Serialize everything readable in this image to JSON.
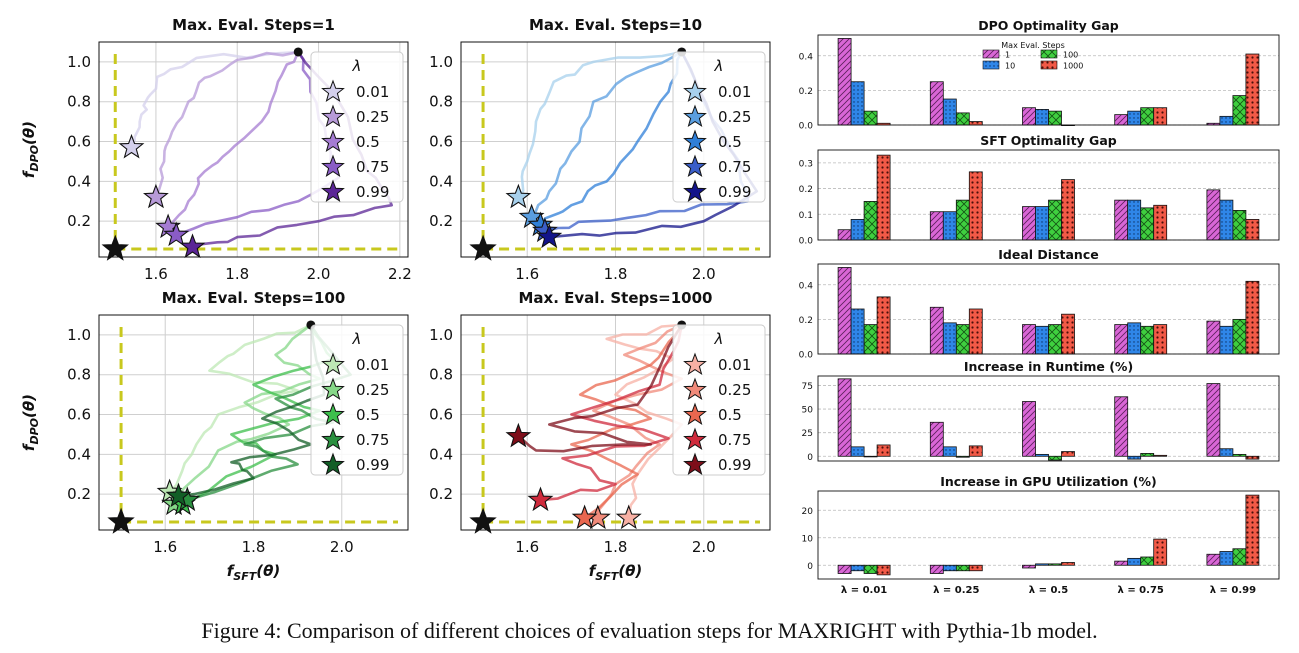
{
  "caption": "Figure 4: Comparison of different choices of evaluation steps for MAXRIGHT with Pythia-1b model.",
  "colors": {
    "target_line": "#c8c81e",
    "grid": "#cfcfcf",
    "bar_1": "#d966d6",
    "bar_10": "#2f86e8",
    "bar_100": "#3fcf3f",
    "bar_1000": "#f25a47"
  },
  "chart_data": [
    {
      "type": "scatter",
      "panel": "top-left",
      "title": "Max. Eval. Steps=1",
      "xlabel": "",
      "ylabel": "f_DPO(θ)",
      "xlim": [
        1.46,
        2.22
      ],
      "ylim": [
        0.02,
        1.1
      ],
      "xticks": [
        "1.6",
        "1.8",
        "2.0",
        "2.2"
      ],
      "yticks": [
        "0.2",
        "0.4",
        "0.6",
        "0.8",
        "1.0"
      ],
      "grid": true,
      "legend_title": "λ",
      "legend_placement": "upper-right",
      "legend": [
        "0.01",
        "0.25",
        "0.5",
        "0.75",
        "0.99"
      ],
      "series_colors": [
        "#d4d0ec",
        "#b79ad8",
        "#a57cd2",
        "#8a5cc6",
        "#5b2596"
      ],
      "target_point": {
        "x": 1.5,
        "y": 0.06
      },
      "start_point": {
        "x": 1.95,
        "y": 1.05
      },
      "star_points": [
        {
          "lambda": "0.01",
          "x": 1.54,
          "y": 0.57
        },
        {
          "lambda": "0.25",
          "x": 1.6,
          "y": 0.32
        },
        {
          "lambda": "0.5",
          "x": 1.63,
          "y": 0.17
        },
        {
          "lambda": "0.75",
          "x": 1.65,
          "y": 0.13
        },
        {
          "lambda": "0.99",
          "x": 1.69,
          "y": 0.07
        }
      ],
      "paths": [
        [
          [
            1.95,
            1.05
          ],
          [
            1.7,
            1.02
          ],
          [
            1.62,
            0.94
          ],
          [
            1.58,
            0.82
          ],
          [
            1.56,
            0.7
          ],
          [
            1.54,
            0.57
          ]
        ],
        [
          [
            1.95,
            1.05
          ],
          [
            1.8,
            1.01
          ],
          [
            1.72,
            0.92
          ],
          [
            1.68,
            0.8
          ],
          [
            1.64,
            0.65
          ],
          [
            1.62,
            0.5
          ],
          [
            1.6,
            0.32
          ]
        ],
        [
          [
            1.95,
            1.05
          ],
          [
            1.9,
            0.9
          ],
          [
            1.86,
            0.7
          ],
          [
            1.78,
            0.55
          ],
          [
            1.72,
            0.45
          ],
          [
            1.68,
            0.3
          ],
          [
            1.63,
            0.17
          ]
        ],
        [
          [
            1.95,
            1.05
          ],
          [
            1.98,
            0.85
          ],
          [
            2.02,
            0.6
          ],
          [
            2.05,
            0.42
          ],
          [
            1.95,
            0.3
          ],
          [
            1.8,
            0.22
          ],
          [
            1.65,
            0.13
          ]
        ],
        [
          [
            1.95,
            1.05
          ],
          [
            2.05,
            0.8
          ],
          [
            2.12,
            0.45
          ],
          [
            2.18,
            0.28
          ],
          [
            2.0,
            0.2
          ],
          [
            1.8,
            0.12
          ],
          [
            1.69,
            0.07
          ]
        ]
      ]
    },
    {
      "type": "scatter",
      "panel": "top-middle",
      "title": "Max. Eval. Steps=10",
      "xlabel": "",
      "ylabel": "",
      "xlim": [
        1.45,
        2.15
      ],
      "ylim": [
        0.02,
        1.1
      ],
      "xticks": [
        "1.6",
        "1.8",
        "2.0"
      ],
      "yticks": [
        "0.2",
        "0.4",
        "0.6",
        "0.8",
        "1.0"
      ],
      "grid": true,
      "legend_title": "λ",
      "legend_placement": "upper-right",
      "legend": [
        "0.01",
        "0.25",
        "0.5",
        "0.75",
        "0.99"
      ],
      "series_colors": [
        "#a7d0ec",
        "#5a9ee0",
        "#2f7fd8",
        "#3a5ec8",
        "#13148a"
      ],
      "target_point": {
        "x": 1.5,
        "y": 0.06
      },
      "start_point": {
        "x": 1.95,
        "y": 1.05
      },
      "star_points": [
        {
          "lambda": "0.01",
          "x": 1.58,
          "y": 0.32
        },
        {
          "lambda": "0.25",
          "x": 1.61,
          "y": 0.22
        },
        {
          "lambda": "0.5",
          "x": 1.63,
          "y": 0.18
        },
        {
          "lambda": "0.75",
          "x": 1.64,
          "y": 0.15
        },
        {
          "lambda": "0.99",
          "x": 1.65,
          "y": 0.12
        }
      ],
      "paths": [
        [
          [
            1.95,
            1.05
          ],
          [
            1.75,
            1.0
          ],
          [
            1.66,
            0.9
          ],
          [
            1.62,
            0.7
          ],
          [
            1.6,
            0.5
          ],
          [
            1.58,
            0.32
          ]
        ],
        [
          [
            1.95,
            1.05
          ],
          [
            1.85,
            0.95
          ],
          [
            1.75,
            0.8
          ],
          [
            1.7,
            0.55
          ],
          [
            1.65,
            0.35
          ],
          [
            1.61,
            0.22
          ]
        ],
        [
          [
            1.95,
            1.05
          ],
          [
            1.92,
            0.85
          ],
          [
            1.85,
            0.6
          ],
          [
            1.78,
            0.4
          ],
          [
            1.7,
            0.28
          ],
          [
            1.63,
            0.18
          ]
        ],
        [
          [
            1.95,
            1.05
          ],
          [
            2.0,
            0.8
          ],
          [
            2.08,
            0.5
          ],
          [
            2.1,
            0.3
          ],
          [
            1.9,
            0.25
          ],
          [
            1.75,
            0.2
          ],
          [
            1.64,
            0.15
          ]
        ],
        [
          [
            1.95,
            1.05
          ],
          [
            2.02,
            0.7
          ],
          [
            2.12,
            0.35
          ],
          [
            2.0,
            0.2
          ],
          [
            1.8,
            0.14
          ],
          [
            1.65,
            0.12
          ]
        ]
      ]
    },
    {
      "type": "scatter",
      "panel": "bottom-left",
      "title": "Max. Eval. Steps=100",
      "xlabel": "f_SFT(θ)",
      "ylabel": "f_DPO(θ)",
      "xlim": [
        1.45,
        2.15
      ],
      "ylim": [
        0.02,
        1.1
      ],
      "xticks": [
        "1.6",
        "1.8",
        "2.0"
      ],
      "yticks": [
        "0.2",
        "0.4",
        "0.6",
        "0.8",
        "1.0"
      ],
      "grid": true,
      "legend_title": "λ",
      "legend_placement": "upper-right",
      "legend": [
        "0.01",
        "0.25",
        "0.5",
        "0.75",
        "0.99"
      ],
      "series_colors": [
        "#bde8b4",
        "#86d788",
        "#3dbf4c",
        "#2a8f3f",
        "#125e26"
      ],
      "target_point": {
        "x": 1.5,
        "y": 0.06
      },
      "start_point": {
        "x": 1.93,
        "y": 1.05
      },
      "star_points": [
        {
          "lambda": "0.01",
          "x": 1.61,
          "y": 0.21
        },
        {
          "lambda": "0.25",
          "x": 1.62,
          "y": 0.15
        },
        {
          "lambda": "0.5",
          "x": 1.64,
          "y": 0.15
        },
        {
          "lambda": "0.75",
          "x": 1.65,
          "y": 0.17
        },
        {
          "lambda": "0.99",
          "x": 1.63,
          "y": 0.19
        }
      ],
      "paths": [
        [
          [
            1.93,
            1.05
          ],
          [
            1.78,
            0.95
          ],
          [
            1.7,
            0.82
          ],
          [
            1.9,
            0.72
          ],
          [
            1.72,
            0.6
          ],
          [
            1.66,
            0.4
          ],
          [
            1.61,
            0.21
          ]
        ],
        [
          [
            1.93,
            1.05
          ],
          [
            1.85,
            0.9
          ],
          [
            1.95,
            0.78
          ],
          [
            1.78,
            0.66
          ],
          [
            1.88,
            0.55
          ],
          [
            1.72,
            0.42
          ],
          [
            1.62,
            0.15
          ]
        ],
        [
          [
            1.93,
            1.05
          ],
          [
            1.98,
            0.88
          ],
          [
            1.8,
            0.75
          ],
          [
            1.95,
            0.62
          ],
          [
            1.75,
            0.5
          ],
          [
            1.85,
            0.4
          ],
          [
            1.64,
            0.15
          ]
        ],
        [
          [
            1.93,
            1.05
          ],
          [
            2.02,
            0.8
          ],
          [
            1.85,
            0.68
          ],
          [
            1.98,
            0.56
          ],
          [
            1.78,
            0.45
          ],
          [
            1.9,
            0.35
          ],
          [
            1.65,
            0.17
          ]
        ],
        [
          [
            1.93,
            1.05
          ],
          [
            1.96,
            0.7
          ],
          [
            1.82,
            0.58
          ],
          [
            1.93,
            0.45
          ],
          [
            1.75,
            0.36
          ],
          [
            1.8,
            0.28
          ],
          [
            1.63,
            0.19
          ]
        ]
      ]
    },
    {
      "type": "scatter",
      "panel": "bottom-middle",
      "title": "Max. Eval. Steps=1000",
      "xlabel": "f_SFT(θ)",
      "ylabel": "",
      "xlim": [
        1.45,
        2.15
      ],
      "ylim": [
        0.02,
        1.1
      ],
      "xticks": [
        "1.6",
        "1.8",
        "2.0"
      ],
      "yticks": [
        "0.2",
        "0.4",
        "0.6",
        "0.8",
        "1.0"
      ],
      "grid": true,
      "legend_title": "λ",
      "legend_placement": "upper-right",
      "legend": [
        "0.01",
        "0.25",
        "0.5",
        "0.75",
        "0.99"
      ],
      "series_colors": [
        "#f7b0a4",
        "#f08a7a",
        "#e9674f",
        "#cf2a3c",
        "#7e0e1a"
      ],
      "target_point": {
        "x": 1.5,
        "y": 0.06
      },
      "start_point": {
        "x": 1.95,
        "y": 1.05
      },
      "star_points": [
        {
          "lambda": "0.01",
          "x": 1.83,
          "y": 0.08
        },
        {
          "lambda": "0.25",
          "x": 1.76,
          "y": 0.08
        },
        {
          "lambda": "0.5",
          "x": 1.73,
          "y": 0.08
        },
        {
          "lambda": "0.75",
          "x": 1.63,
          "y": 0.17
        },
        {
          "lambda": "0.99",
          "x": 1.58,
          "y": 0.49
        }
      ],
      "paths": [
        [
          [
            1.95,
            1.05
          ],
          [
            1.78,
            0.98
          ],
          [
            1.93,
            0.88
          ],
          [
            1.8,
            0.7
          ],
          [
            1.95,
            0.55
          ],
          [
            1.85,
            0.3
          ],
          [
            1.83,
            0.08
          ]
        ],
        [
          [
            1.95,
            1.05
          ],
          [
            1.82,
            0.9
          ],
          [
            1.95,
            0.78
          ],
          [
            1.75,
            0.62
          ],
          [
            1.9,
            0.45
          ],
          [
            1.8,
            0.25
          ],
          [
            1.76,
            0.08
          ]
        ],
        [
          [
            1.95,
            1.05
          ],
          [
            1.88,
            0.85
          ],
          [
            1.72,
            0.7
          ],
          [
            1.88,
            0.58
          ],
          [
            1.7,
            0.45
          ],
          [
            1.85,
            0.3
          ],
          [
            1.73,
            0.08
          ]
        ],
        [
          [
            1.95,
            1.05
          ],
          [
            1.9,
            0.75
          ],
          [
            1.7,
            0.6
          ],
          [
            1.92,
            0.48
          ],
          [
            1.68,
            0.38
          ],
          [
            1.8,
            0.25
          ],
          [
            1.63,
            0.17
          ]
        ],
        [
          [
            1.95,
            1.05
          ],
          [
            1.85,
            0.65
          ],
          [
            1.65,
            0.55
          ],
          [
            1.88,
            0.45
          ],
          [
            1.62,
            0.42
          ],
          [
            1.58,
            0.49
          ]
        ]
      ]
    },
    {
      "type": "bar",
      "panel": "right-1",
      "title": "DPO Optimality Gap",
      "legend_title": "Max Eval. Steps",
      "legend_placement": "top-right",
      "legend": [
        "1",
        "10",
        "100",
        "1000"
      ],
      "categories": [
        "λ = 0.01",
        "λ = 0.25",
        "λ = 0.5",
        "λ = 0.75",
        "λ = 0.99"
      ],
      "ylim": [
        0,
        0.52
      ],
      "yticks": [
        "0.0",
        "0.2",
        "0.4"
      ],
      "ytick_values": [
        0,
        0.2,
        0.4
      ],
      "series": [
        {
          "name": "1",
          "values": [
            0.5,
            0.25,
            0.1,
            0.06,
            0.01
          ]
        },
        {
          "name": "10",
          "values": [
            0.25,
            0.15,
            0.09,
            0.08,
            0.05
          ]
        },
        {
          "name": "100",
          "values": [
            0.08,
            0.07,
            0.08,
            0.1,
            0.17
          ]
        },
        {
          "name": "1000",
          "values": [
            0.01,
            0.02,
            0.0,
            0.1,
            0.41
          ]
        }
      ]
    },
    {
      "type": "bar",
      "panel": "right-2",
      "title": "SFT Optimality Gap",
      "categories": [
        "λ = 0.01",
        "λ = 0.25",
        "λ = 0.5",
        "λ = 0.75",
        "λ = 0.99"
      ],
      "ylim": [
        0,
        0.35
      ],
      "yticks": [
        "0.0",
        "0.1",
        "0.2",
        "0.3"
      ],
      "ytick_values": [
        0,
        0.1,
        0.2,
        0.3
      ],
      "series": [
        {
          "name": "1",
          "values": [
            0.04,
            0.11,
            0.13,
            0.155,
            0.195
          ]
        },
        {
          "name": "10",
          "values": [
            0.08,
            0.11,
            0.13,
            0.155,
            0.155
          ]
        },
        {
          "name": "100",
          "values": [
            0.15,
            0.155,
            0.155,
            0.125,
            0.115
          ]
        },
        {
          "name": "1000",
          "values": [
            0.33,
            0.265,
            0.235,
            0.135,
            0.08
          ]
        }
      ]
    },
    {
      "type": "bar",
      "panel": "right-3",
      "title": "Ideal Distance",
      "categories": [
        "λ = 0.01",
        "λ = 0.25",
        "λ = 0.5",
        "λ = 0.75",
        "λ = 0.99"
      ],
      "ylim": [
        0,
        0.52
      ],
      "yticks": [
        "0.0",
        "0.2",
        "0.4"
      ],
      "ytick_values": [
        0,
        0.2,
        0.4
      ],
      "series": [
        {
          "name": "1",
          "values": [
            0.5,
            0.27,
            0.17,
            0.17,
            0.19
          ]
        },
        {
          "name": "10",
          "values": [
            0.26,
            0.18,
            0.16,
            0.18,
            0.16
          ]
        },
        {
          "name": "100",
          "values": [
            0.17,
            0.17,
            0.17,
            0.16,
            0.2
          ]
        },
        {
          "name": "1000",
          "values": [
            0.33,
            0.26,
            0.23,
            0.17,
            0.42
          ]
        }
      ]
    },
    {
      "type": "bar",
      "panel": "right-4",
      "title": "Increase in Runtime (%)",
      "categories": [
        "λ = 0.01",
        "λ = 0.25",
        "λ = 0.5",
        "λ = 0.75",
        "λ = 0.99"
      ],
      "ylim": [
        -5,
        85
      ],
      "yticks": [
        "0",
        "25",
        "50",
        "75"
      ],
      "ytick_values": [
        0,
        25,
        50,
        75
      ],
      "series": [
        {
          "name": "1",
          "values": [
            82,
            36,
            58,
            63,
            77
          ]
        },
        {
          "name": "10",
          "values": [
            10,
            10,
            2,
            -3,
            8
          ]
        },
        {
          "name": "100",
          "values": [
            0,
            -1,
            -4,
            3,
            2
          ]
        },
        {
          "name": "1000",
          "values": [
            12,
            11,
            5,
            1,
            -3
          ]
        }
      ]
    },
    {
      "type": "bar",
      "panel": "right-5",
      "title": "Increase in GPU Utilization (%)",
      "categories": [
        "λ = 0.01",
        "λ = 0.25",
        "λ = 0.5",
        "λ = 0.75",
        "λ = 0.99"
      ],
      "ylim": [
        -5,
        27
      ],
      "yticks": [
        "0",
        "10",
        "20"
      ],
      "ytick_values": [
        0,
        10,
        20
      ],
      "series": [
        {
          "name": "1",
          "values": [
            -3,
            -3,
            -1,
            1.5,
            4
          ]
        },
        {
          "name": "10",
          "values": [
            -2,
            -2,
            0.5,
            2.5,
            5
          ]
        },
        {
          "name": "100",
          "values": [
            -3,
            -2,
            0.5,
            3,
            6
          ]
        },
        {
          "name": "1000",
          "values": [
            -3.5,
            -2,
            1,
            9.5,
            25.5
          ]
        }
      ]
    }
  ]
}
